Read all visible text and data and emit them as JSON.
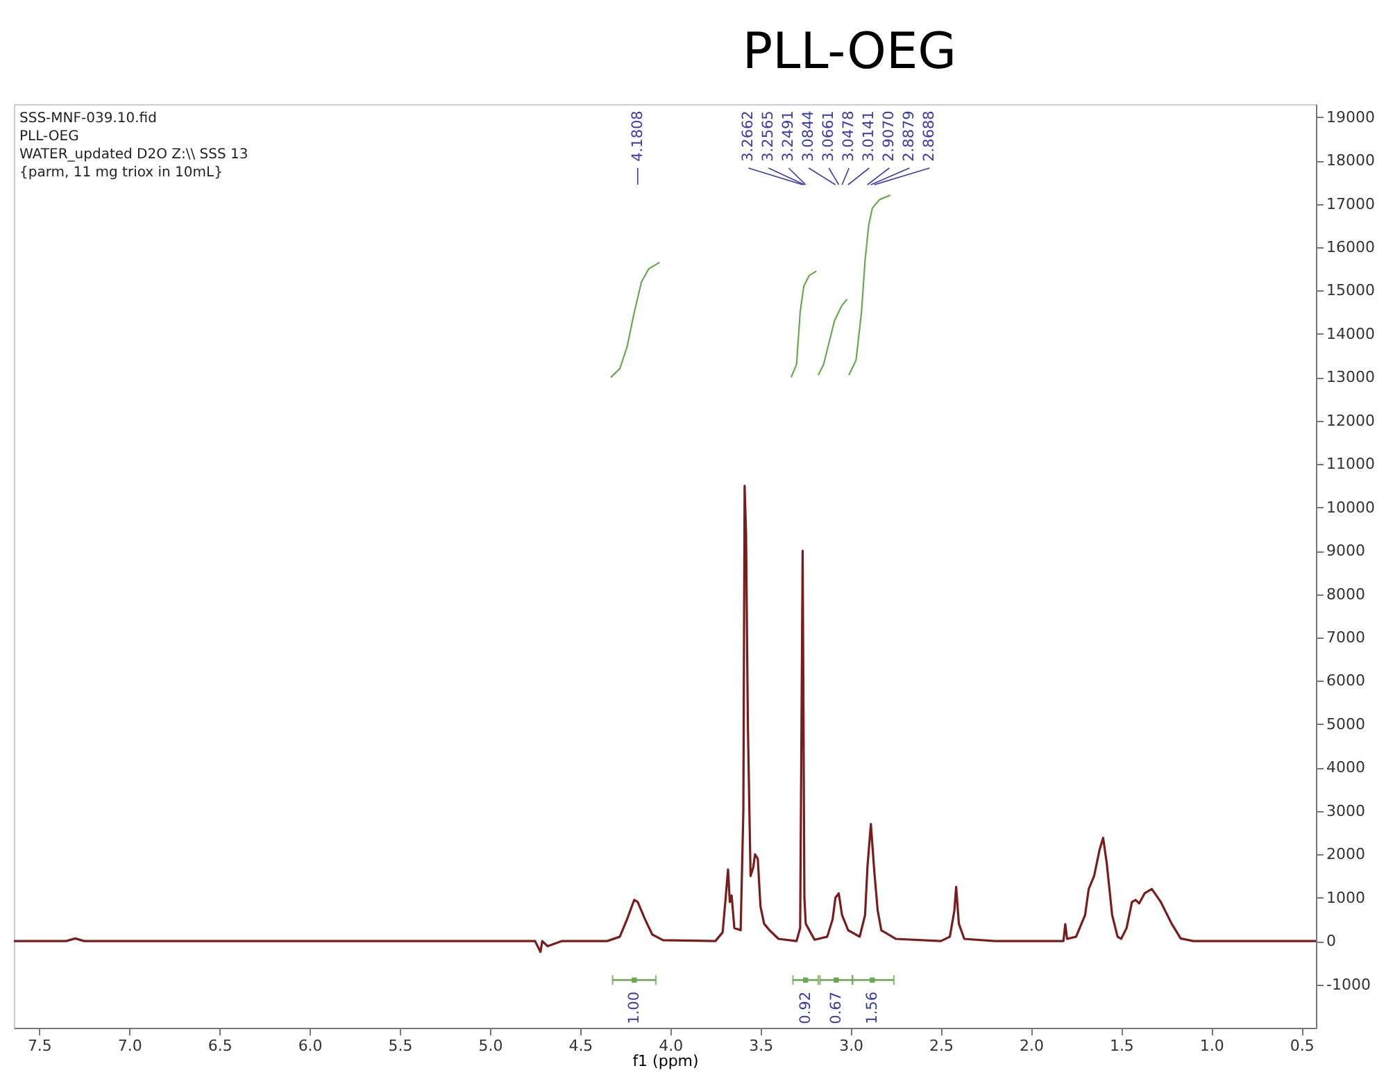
{
  "chart_data": {
    "type": "line",
    "title": "PLL-OEG",
    "xlabel": "f1 (ppm)",
    "annotations": [
      "SSS-MNF-039.10.fid",
      "PLL-OEG",
      "WATER_updated D2O Z:\\\\ SSS 13",
      "{parm, 11 mg triox in 10mL}",
      {
        "text": "4.1808",
        "x": 4.1808
      },
      {
        "text": "3.2662",
        "x": 3.2662
      },
      {
        "text": "3.2565",
        "x": 3.2565
      },
      {
        "text": "3.2491",
        "x": 3.2491
      },
      {
        "text": "3.0844",
        "x": 3.0844
      },
      {
        "text": "3.0661",
        "x": 3.0661
      },
      {
        "text": "3.0478",
        "x": 3.0478
      },
      {
        "text": "3.0141",
        "x": 3.0141
      },
      {
        "text": "2.9070",
        "x": 2.907
      },
      {
        "text": "2.8879",
        "x": 2.8879
      },
      {
        "text": "2.8688",
        "x": 2.8688
      },
      {
        "text": "1.00",
        "x": 4.2,
        "y": -900
      },
      {
        "text": "0.92",
        "x": 3.25,
        "y": -900
      },
      {
        "text": "0.67",
        "x": 3.08,
        "y": -900
      },
      {
        "text": "1.56",
        "x": 2.88,
        "y": -900
      }
    ],
    "xlim": [
      7.64,
      0.42
    ],
    "xticks": [
      7.5,
      {
        "value": 7,
        "label": "7.0"
      },
      6.5,
      {
        "value": 6,
        "label": "6.0"
      },
      5.5,
      {
        "value": 5,
        "label": "5.0"
      },
      4.5,
      {
        "value": 4,
        "label": "4.0"
      },
      3.5,
      {
        "value": 3,
        "label": "3.0"
      },
      2.5,
      {
        "value": 2,
        "label": "2.0"
      },
      1.5,
      {
        "value": 1,
        "label": "1.0"
      },
      0.5
    ],
    "ylim": [
      -2000,
      19300
    ],
    "yticks": [
      -1000,
      0,
      1000,
      2000,
      3000,
      4000,
      5000,
      6000,
      7000,
      8000,
      9000,
      10000,
      11000,
      12000,
      13000,
      14000,
      15000,
      16000,
      17000,
      18000,
      19000
    ],
    "grid": false,
    "series": [
      {
        "color": "#7b1c1c",
        "x": [
          7.64,
          7.35,
          7.3,
          7.25,
          5.0,
          4.75,
          4.72,
          4.71,
          4.68,
          4.6,
          4.35,
          4.28,
          4.24,
          4.2,
          4.1808,
          4.14,
          4.1,
          4.04,
          3.75,
          3.71,
          3.695,
          3.68,
          3.67,
          3.66,
          3.645,
          3.61,
          3.595,
          3.588,
          3.58,
          3.57,
          3.555,
          3.54,
          3.53,
          3.515,
          3.5,
          3.48,
          3.45,
          3.4,
          3.3,
          3.28,
          3.2662,
          3.2565,
          3.2491,
          3.2,
          3.13,
          3.1,
          3.0844,
          3.0661,
          3.0478,
          3.0141,
          2.95,
          2.92,
          2.907,
          2.8879,
          2.8688,
          2.85,
          2.83,
          2.75,
          2.5,
          2.45,
          2.425,
          2.415,
          2.4,
          2.37,
          2.2,
          1.82,
          1.81,
          1.8,
          1.75,
          1.7,
          1.68,
          1.65,
          1.62,
          1.6,
          1.58,
          1.55,
          1.52,
          1.5,
          1.47,
          1.44,
          1.42,
          1.4,
          1.37,
          1.33,
          1.28,
          1.22,
          1.17,
          1.1,
          0.42
        ],
        "values": [
          0,
          0,
          60,
          0,
          0,
          0,
          -250,
          0,
          -120,
          0,
          0,
          100,
          500,
          950,
          900,
          500,
          150,
          20,
          0,
          200,
          900,
          1650,
          900,
          1050,
          300,
          250,
          3000,
          10500,
          9400,
          5000,
          1500,
          1700,
          2000,
          1900,
          800,
          400,
          250,
          50,
          0,
          300,
          9000,
          1000,
          400,
          30,
          100,
          500,
          1000,
          1100,
          600,
          250,
          100,
          600,
          1700,
          2700,
          1600,
          700,
          250,
          50,
          0,
          100,
          700,
          1250,
          400,
          50,
          0,
          0,
          390,
          50,
          100,
          600,
          1200,
          1500,
          2100,
          2380,
          1800,
          600,
          100,
          50,
          300,
          900,
          950,
          870,
          1100,
          1200,
          900,
          400,
          60,
          0,
          0
        ]
      },
      {
        "type": "line",
        "color": "#6aa84f",
        "x": [
          4.33,
          4.28,
          4.24,
          4.2,
          4.16,
          4.12,
          4.06
        ],
        "values": [
          13000,
          13200,
          13700,
          14500,
          15200,
          15500,
          15650
        ]
      },
      {
        "type": "line",
        "color": "#6aa84f",
        "x": [
          3.33,
          3.3,
          3.28,
          3.26,
          3.23,
          3.19
        ],
        "values": [
          13000,
          13300,
          14500,
          15100,
          15350,
          15450
        ]
      },
      {
        "type": "line",
        "color": "#6aa84f",
        "x": [
          3.18,
          3.15,
          3.12,
          3.09,
          3.05,
          3.02
        ],
        "values": [
          13050,
          13300,
          13800,
          14300,
          14650,
          14800
        ]
      },
      {
        "type": "line",
        "color": "#6aa84f",
        "x": [
          3.01,
          2.97,
          2.94,
          2.92,
          2.9,
          2.88,
          2.84,
          2.78
        ],
        "values": [
          13050,
          13400,
          14500,
          15700,
          16500,
          16900,
          17100,
          17200
        ]
      },
      {
        "type": "scatter",
        "marker": "square",
        "color": "#6aa84f",
        "x": [
          4.2,
          3.25,
          3.08,
          2.88
        ],
        "values": [
          -900,
          -900,
          -900,
          -900
        ],
        "xerrors": [
          [
            4.08,
            4.32
          ],
          [
            3.18,
            3.32
          ],
          [
            2.99,
            3.17
          ],
          [
            2.76,
            2.99
          ]
        ]
      }
    ]
  }
}
